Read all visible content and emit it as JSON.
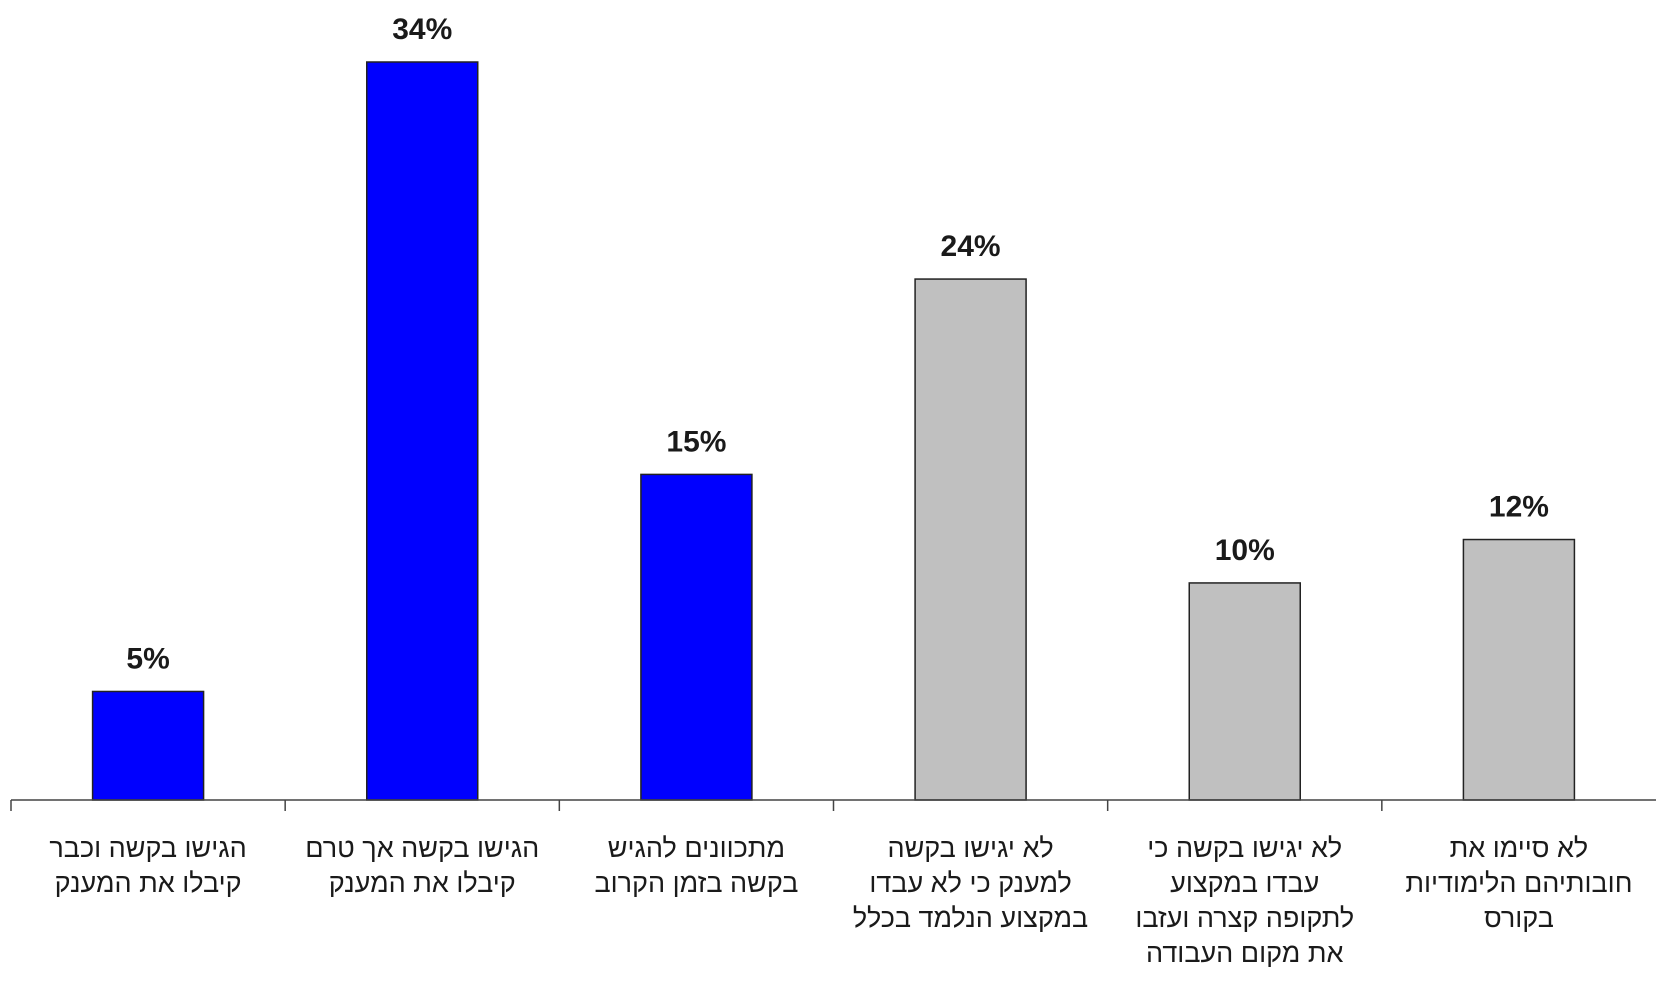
{
  "chart_data": {
    "type": "bar",
    "categories": [
      [
        "הגישו בקשה וכבר",
        "קיבלו את המענק"
      ],
      [
        "הגישו בקשה אך טרם",
        "קיבלו את המענק"
      ],
      [
        "מתכוונים להגיש",
        "בקשה בזמן הקרוב"
      ],
      [
        "לא יגישו בקשה",
        "למענק כי לא עבדו",
        "במקצוע הנלמד בכלל"
      ],
      [
        "לא יגישו בקשה כי",
        "עבדו במקצוע",
        "לתקופה קצרה ועזבו",
        "את מקום העבודה"
      ],
      [
        "לא סיימו את",
        "חובותיהם הלימודיות",
        "בקורס"
      ]
    ],
    "values": [
      5,
      34,
      15,
      24,
      10,
      12
    ],
    "value_labels": [
      "5%",
      "34%",
      "15%",
      "24%",
      "10%",
      "12%"
    ],
    "bar_colors": [
      "#0000ff",
      "#0000ff",
      "#0000ff",
      "#c0c0c0",
      "#c0c0c0",
      "#c0c0c0"
    ],
    "ylim": [
      0,
      37
    ],
    "grid": false,
    "legend": "none",
    "title": "",
    "xlabel": "",
    "ylabel": ""
  }
}
